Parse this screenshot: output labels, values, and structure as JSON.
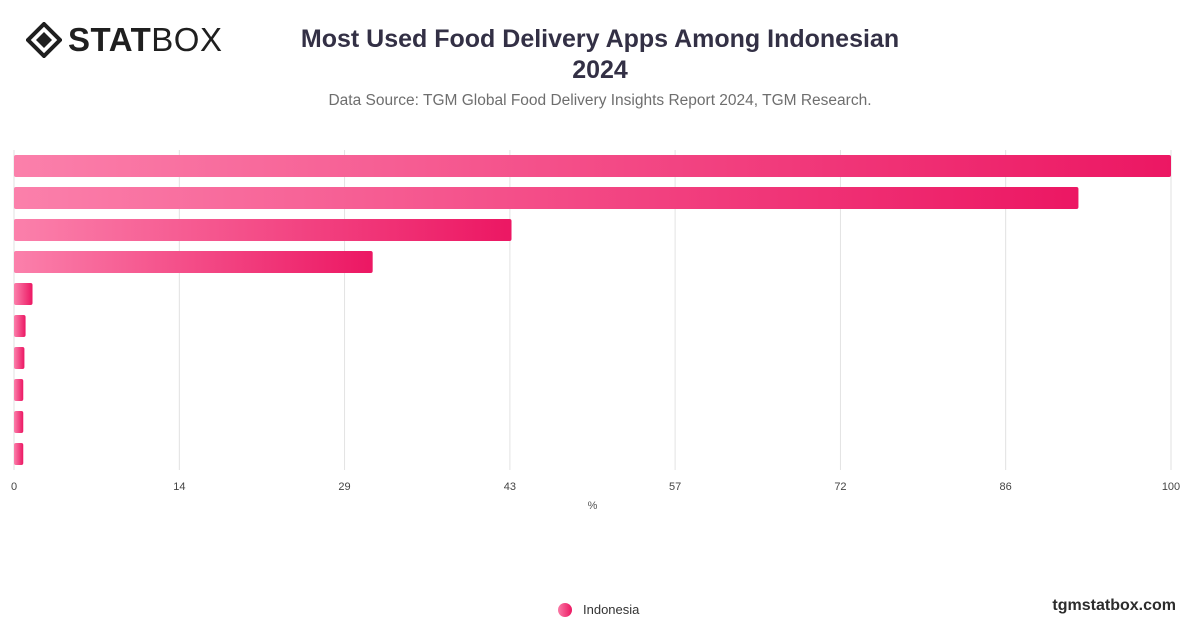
{
  "header": {
    "logo_text_bold": "STAT",
    "logo_text_light": "BOX",
    "title_line1": "Most Used Food Delivery Apps Among Indonesian",
    "title_line2": "2024",
    "subtitle": "Data Source: TGM Global Food Delivery Insights Report 2024, TGM Research."
  },
  "legend": {
    "label": "Indonesia",
    "icon": "circle-marker"
  },
  "footer": {
    "watermark": "tgmstatbox.com"
  },
  "colors": {
    "bar_start": "#fb80ab",
    "bar_end": "#ec1763",
    "title": "#333045",
    "grid": "#e2e2e2"
  },
  "chart_data": {
    "type": "bar",
    "orientation": "horizontal",
    "series": [
      {
        "name": "Indonesia",
        "values": [
          100,
          92,
          43,
          31,
          1.6,
          1.0,
          0.9,
          0.8,
          0.8,
          0.8
        ]
      }
    ],
    "xlabel": "%",
    "xlim": [
      0,
      100
    ],
    "x_ticks": [
      "0",
      "14",
      "29",
      "43",
      "57",
      "72",
      "86",
      "100"
    ],
    "x_tick_values": [
      0,
      14.29,
      28.57,
      42.86,
      57.14,
      71.43,
      85.71,
      100
    ],
    "grid": true,
    "legend_position": "bottom-center"
  }
}
